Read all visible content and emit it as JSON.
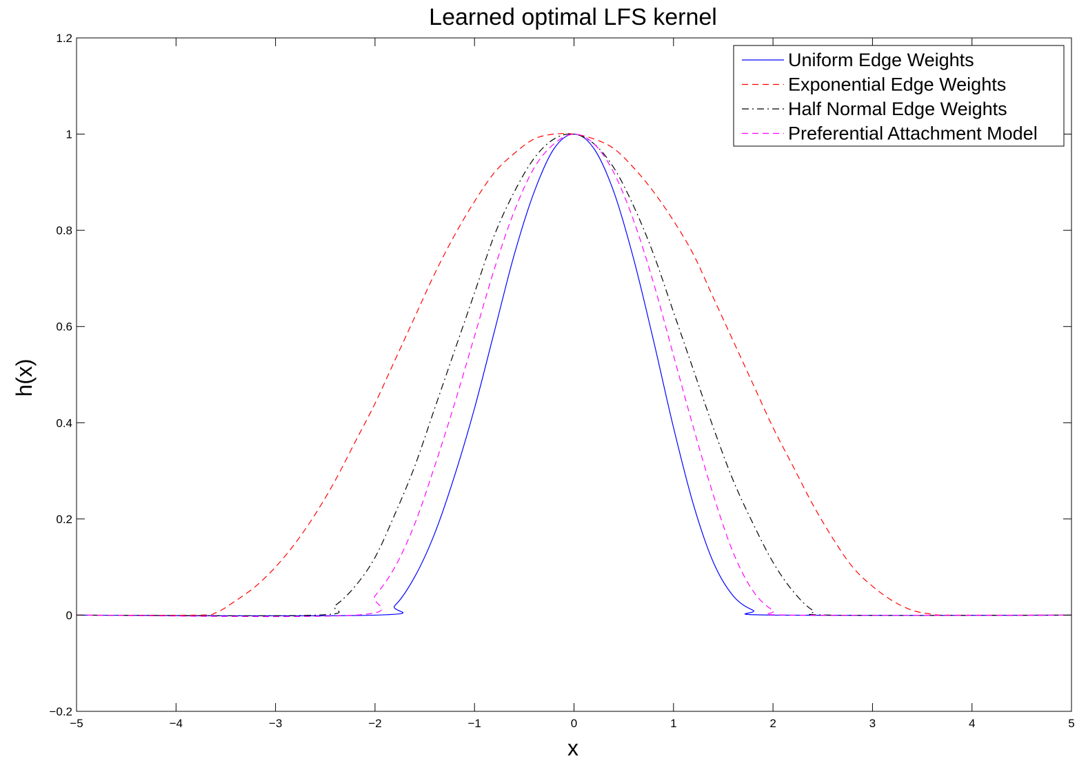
{
  "chart_data": {
    "type": "line",
    "title": "Learned optimal LFS kernel",
    "xlabel": "x",
    "ylabel": "h(x)",
    "xlim": [
      -5,
      5
    ],
    "ylim": [
      -0.2,
      1.2
    ],
    "xticks": [
      -5,
      -4,
      -3,
      -2,
      -1,
      0,
      1,
      2,
      3,
      4,
      5
    ],
    "xtick_labels": [
      "−5",
      "−4",
      "−3",
      "−2",
      "−1",
      "0",
      "1",
      "2",
      "3",
      "4",
      "5"
    ],
    "yticks": [
      -0.2,
      0,
      0.2,
      0.4,
      0.6,
      0.8,
      1,
      1.2
    ],
    "ytick_labels": [
      "−0.2",
      "0",
      "0.2",
      "0.4",
      "0.6",
      "0.8",
      "1",
      "1.2"
    ],
    "grid": false,
    "legend_position": "top-right",
    "series": [
      {
        "name": "Uniform Edge Weights",
        "color": "#0000ff",
        "style": "solid",
        "x": [
          -5,
          -2.0,
          -1.8,
          -1.6,
          -1.4,
          -1.2,
          -1.0,
          -0.8,
          -0.6,
          -0.4,
          -0.2,
          0,
          0.2,
          0.4,
          0.6,
          0.8,
          1.0,
          1.2,
          1.4,
          1.6,
          1.8,
          2.0,
          5
        ],
        "y": [
          0,
          0,
          0.02,
          0.08,
          0.17,
          0.29,
          0.43,
          0.59,
          0.75,
          0.88,
          0.97,
          1.0,
          0.97,
          0.88,
          0.74,
          0.57,
          0.39,
          0.23,
          0.11,
          0.04,
          0.01,
          0,
          0
        ]
      },
      {
        "name": "Exponential Edge Weights",
        "color": "#ff0000",
        "style": "dashed",
        "x": [
          -5,
          -3.8,
          -3.6,
          -3.4,
          -3.2,
          -3.0,
          -2.8,
          -2.6,
          -2.4,
          -2.2,
          -2.0,
          -1.8,
          -1.6,
          -1.4,
          -1.2,
          -1.0,
          -0.8,
          -0.6,
          -0.4,
          -0.2,
          0,
          0.2,
          0.4,
          0.6,
          0.8,
          1.0,
          1.2,
          1.4,
          1.6,
          1.8,
          2.0,
          2.2,
          2.4,
          2.6,
          2.8,
          3.0,
          3.2,
          3.4,
          3.6,
          3.8,
          5
        ],
        "y": [
          0,
          0,
          0.005,
          0.03,
          0.06,
          0.1,
          0.15,
          0.21,
          0.28,
          0.36,
          0.44,
          0.53,
          0.62,
          0.71,
          0.79,
          0.86,
          0.92,
          0.96,
          0.99,
          1.0,
          1.0,
          0.99,
          0.97,
          0.93,
          0.88,
          0.82,
          0.75,
          0.66,
          0.57,
          0.48,
          0.39,
          0.31,
          0.23,
          0.16,
          0.1,
          0.06,
          0.03,
          0.01,
          0.002,
          0,
          0
        ]
      },
      {
        "name": "Half Normal Edge Weights",
        "color": "#000000",
        "style": "dashdot",
        "x": [
          -5,
          -2.6,
          -2.4,
          -2.2,
          -2.0,
          -1.8,
          -1.6,
          -1.4,
          -1.2,
          -1.0,
          -0.8,
          -0.6,
          -0.4,
          -0.2,
          0,
          0.2,
          0.4,
          0.6,
          0.8,
          1.0,
          1.2,
          1.4,
          1.6,
          1.8,
          2.0,
          2.2,
          2.4,
          2.6,
          5
        ],
        "y": [
          0,
          0,
          0.02,
          0.06,
          0.12,
          0.21,
          0.31,
          0.43,
          0.55,
          0.67,
          0.79,
          0.88,
          0.95,
          0.99,
          1.0,
          0.98,
          0.93,
          0.85,
          0.75,
          0.63,
          0.51,
          0.39,
          0.28,
          0.19,
          0.11,
          0.05,
          0.01,
          0,
          0
        ]
      },
      {
        "name": "Preferential Attachment Model",
        "color": "#ff00ff",
        "style": "dashed",
        "x": [
          -5,
          -2.2,
          -2.0,
          -1.8,
          -1.6,
          -1.4,
          -1.2,
          -1.0,
          -0.8,
          -0.6,
          -0.4,
          -0.2,
          0,
          0.2,
          0.4,
          0.6,
          0.8,
          1.0,
          1.2,
          1.4,
          1.6,
          1.8,
          2.0,
          2.2,
          5
        ],
        "y": [
          0,
          0,
          0.04,
          0.1,
          0.19,
          0.31,
          0.44,
          0.58,
          0.72,
          0.84,
          0.93,
          0.98,
          1.0,
          0.98,
          0.92,
          0.82,
          0.69,
          0.54,
          0.39,
          0.25,
          0.13,
          0.05,
          0.01,
          0,
          0
        ]
      }
    ]
  }
}
